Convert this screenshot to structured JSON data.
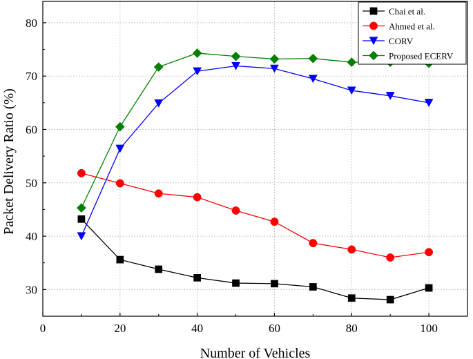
{
  "chart_data": {
    "type": "line",
    "title": "",
    "xlabel": "Number of Vehicles",
    "ylabel": "Packet Delivery Ratio (%)",
    "xlim": [
      0,
      110
    ],
    "ylim": [
      25,
      84
    ],
    "xticks": [
      0,
      20,
      40,
      60,
      80,
      100
    ],
    "yticks": [
      30,
      40,
      50,
      60,
      70,
      80
    ],
    "grid": true,
    "legend_position": "top-right",
    "x": [
      10,
      20,
      30,
      40,
      50,
      60,
      70,
      80,
      90,
      100
    ],
    "series": [
      {
        "name": "Chai et al.",
        "color": "#000000",
        "marker": "square",
        "values": [
          43.2,
          35.6,
          33.8,
          32.2,
          31.2,
          31.1,
          30.5,
          28.4,
          28.1,
          30.3
        ]
      },
      {
        "name": "Ahmed et al.",
        "color": "#ff0000",
        "marker": "circle",
        "values": [
          51.8,
          49.9,
          48.0,
          47.3,
          44.8,
          42.7,
          38.7,
          37.5,
          36.0,
          37.0
        ]
      },
      {
        "name": "CORV",
        "color": "#0000ff",
        "marker": "triangle-down",
        "values": [
          40.0,
          56.4,
          64.9,
          70.9,
          71.9,
          71.4,
          69.5,
          67.3,
          66.3,
          65.0
        ]
      },
      {
        "name": "Proposed ECERV",
        "color": "#008000",
        "marker": "diamond",
        "values": [
          45.3,
          60.5,
          71.7,
          74.3,
          73.7,
          73.2,
          73.3,
          72.6,
          72.6,
          72.4
        ]
      }
    ]
  }
}
